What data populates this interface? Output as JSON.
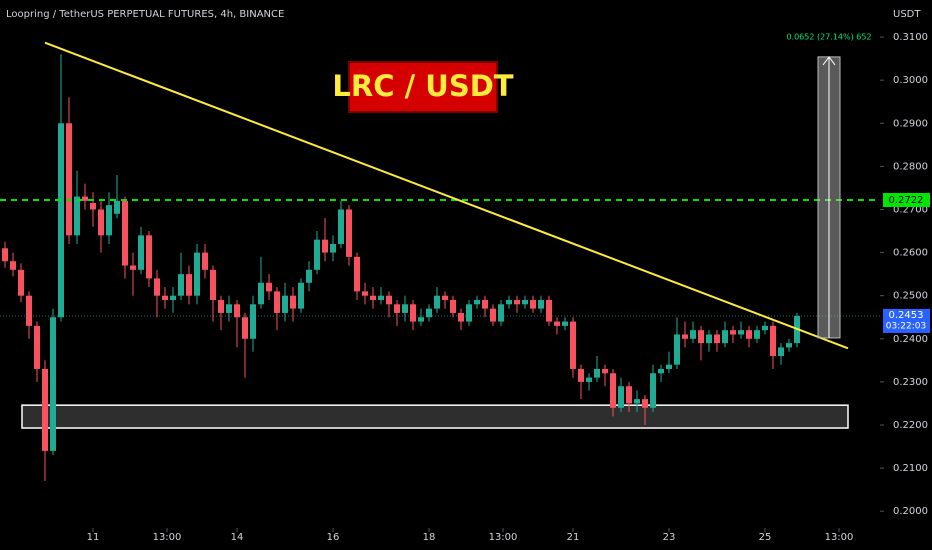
{
  "chart_data": {
    "type": "candlestick",
    "title": "Loopring / TetherUS PERPETUAL FUTURES, 4h, BINANCE",
    "axis_label": "USDT",
    "annotation": "LRC / USDT",
    "up_color": "#22ab94",
    "down_color": "#f7525f",
    "xlim": [
      -22.5,
      417.5
    ],
    "xticks": [
      {
        "value": 24,
        "label": "11"
      },
      {
        "value": 61,
        "label": "13:00"
      },
      {
        "value": 96,
        "label": "14"
      },
      {
        "value": 144,
        "label": "16"
      },
      {
        "value": 192,
        "label": "18"
      },
      {
        "value": 229,
        "label": "13:00"
      },
      {
        "value": 264,
        "label": "21"
      },
      {
        "value": 312,
        "label": "23"
      },
      {
        "value": 360,
        "label": "25"
      },
      {
        "value": 397,
        "label": "13:00"
      }
    ],
    "ylim": [
      0.191,
      0.3186
    ],
    "yticks": [
      {
        "value": 0.2,
        "label": "0.2000"
      },
      {
        "value": 0.21,
        "label": "0.2100"
      },
      {
        "value": 0.22,
        "label": "0.2200"
      },
      {
        "value": 0.23,
        "label": "0.2300"
      },
      {
        "value": 0.24,
        "label": "0.2400"
      },
      {
        "value": 0.25,
        "label": "0.2500"
      },
      {
        "value": 0.26,
        "label": "0.2600"
      },
      {
        "value": 0.27,
        "label": "0.2700"
      },
      {
        "value": 0.28,
        "label": "0.2800"
      },
      {
        "value": 0.29,
        "label": "0.2900"
      },
      {
        "value": 0.3,
        "label": "0.3000"
      },
      {
        "value": 0.31,
        "label": "0.3100"
      }
    ],
    "grid": false,
    "x": [
      -20,
      -16,
      -12,
      -8,
      -4,
      0,
      4,
      8,
      12,
      16,
      20,
      24,
      28,
      32,
      36,
      40,
      44,
      48,
      52,
      56,
      60,
      64,
      68,
      72,
      76,
      80,
      84,
      88,
      92,
      96,
      100,
      104,
      108,
      112,
      116,
      120,
      124,
      128,
      132,
      136,
      140,
      144,
      148,
      152,
      156,
      160,
      164,
      168,
      172,
      176,
      180,
      184,
      188,
      192,
      196,
      200,
      204,
      208,
      212,
      216,
      220,
      224,
      228,
      232,
      236,
      240,
      244,
      248,
      252,
      256,
      260,
      264,
      268,
      272,
      276,
      280,
      284,
      288,
      292,
      296,
      300,
      304,
      308,
      312,
      316,
      320,
      324,
      328,
      332,
      336,
      340,
      344,
      348,
      352,
      356,
      360,
      364,
      368,
      372,
      376
    ],
    "candles": [
      [
        0.261,
        0.2625,
        0.2565,
        0.258
      ],
      [
        0.258,
        0.26,
        0.2545,
        0.256
      ],
      [
        0.256,
        0.2575,
        0.2485,
        0.25
      ],
      [
        0.25,
        0.251,
        0.24,
        0.243
      ],
      [
        0.243,
        0.244,
        0.23,
        0.233
      ],
      [
        0.233,
        0.235,
        0.207,
        0.214
      ],
      [
        0.214,
        0.247,
        0.213,
        0.245
      ],
      [
        0.245,
        0.306,
        0.244,
        0.29
      ],
      [
        0.29,
        0.296,
        0.262,
        0.264
      ],
      [
        0.264,
        0.279,
        0.262,
        0.273
      ],
      [
        0.273,
        0.276,
        0.27,
        0.272
      ],
      [
        0.2715,
        0.274,
        0.266,
        0.27
      ],
      [
        0.27,
        0.272,
        0.26,
        0.264
      ],
      [
        0.264,
        0.274,
        0.262,
        0.271
      ],
      [
        0.269,
        0.278,
        0.268,
        0.272
      ],
      [
        0.272,
        0.273,
        0.254,
        0.257
      ],
      [
        0.257,
        0.26,
        0.25,
        0.256
      ],
      [
        0.256,
        0.266,
        0.255,
        0.264
      ],
      [
        0.264,
        0.265,
        0.252,
        0.254
      ],
      [
        0.254,
        0.256,
        0.245,
        0.25
      ],
      [
        0.25,
        0.252,
        0.247,
        0.249
      ],
      [
        0.249,
        0.252,
        0.246,
        0.25
      ],
      [
        0.25,
        0.26,
        0.249,
        0.255
      ],
      [
        0.255,
        0.257,
        0.248,
        0.25
      ],
      [
        0.25,
        0.262,
        0.248,
        0.26
      ],
      [
        0.26,
        0.262,
        0.254,
        0.256
      ],
      [
        0.256,
        0.257,
        0.244,
        0.249
      ],
      [
        0.249,
        0.25,
        0.242,
        0.246
      ],
      [
        0.246,
        0.25,
        0.244,
        0.248
      ],
      [
        0.248,
        0.249,
        0.238,
        0.245
      ],
      [
        0.245,
        0.246,
        0.231,
        0.24
      ],
      [
        0.24,
        0.25,
        0.237,
        0.248
      ],
      [
        0.248,
        0.259,
        0.247,
        0.253
      ],
      [
        0.253,
        0.255,
        0.249,
        0.251
      ],
      [
        0.251,
        0.252,
        0.242,
        0.246
      ],
      [
        0.246,
        0.253,
        0.244,
        0.25
      ],
      [
        0.25,
        0.252,
        0.244,
        0.247
      ],
      [
        0.247,
        0.254,
        0.246,
        0.253
      ],
      [
        0.253,
        0.258,
        0.251,
        0.256
      ],
      [
        0.256,
        0.265,
        0.255,
        0.263
      ],
      [
        0.263,
        0.268,
        0.258,
        0.26
      ],
      [
        0.26,
        0.264,
        0.258,
        0.262
      ],
      [
        0.262,
        0.272,
        0.261,
        0.27
      ],
      [
        0.27,
        0.271,
        0.257,
        0.259
      ],
      [
        0.259,
        0.26,
        0.249,
        0.251
      ],
      [
        0.251,
        0.253,
        0.248,
        0.25
      ],
      [
        0.25,
        0.252,
        0.247,
        0.249
      ],
      [
        0.249,
        0.252,
        0.248,
        0.25
      ],
      [
        0.25,
        0.251,
        0.245,
        0.248
      ],
      [
        0.248,
        0.249,
        0.243,
        0.246
      ],
      [
        0.246,
        0.25,
        0.244,
        0.248
      ],
      [
        0.248,
        0.249,
        0.242,
        0.244
      ],
      [
        0.244,
        0.247,
        0.243,
        0.245
      ],
      [
        0.245,
        0.248,
        0.244,
        0.247
      ],
      [
        0.247,
        0.252,
        0.246,
        0.25
      ],
      [
        0.25,
        0.251,
        0.247,
        0.249
      ],
      [
        0.249,
        0.25,
        0.245,
        0.246
      ],
      [
        0.246,
        0.247,
        0.242,
        0.244
      ],
      [
        0.244,
        0.249,
        0.243,
        0.248
      ],
      [
        0.248,
        0.25,
        0.247,
        0.249
      ],
      [
        0.249,
        0.25,
        0.245,
        0.247
      ],
      [
        0.247,
        0.248,
        0.243,
        0.244
      ],
      [
        0.244,
        0.249,
        0.243,
        0.248
      ],
      [
        0.248,
        0.25,
        0.247,
        0.249
      ],
      [
        0.249,
        0.25,
        0.246,
        0.248
      ],
      [
        0.248,
        0.25,
        0.247,
        0.249
      ],
      [
        0.249,
        0.25,
        0.246,
        0.247
      ],
      [
        0.247,
        0.25,
        0.246,
        0.249
      ],
      [
        0.249,
        0.25,
        0.243,
        0.244
      ],
      [
        0.244,
        0.245,
        0.241,
        0.243
      ],
      [
        0.243,
        0.245,
        0.242,
        0.244
      ],
      [
        0.244,
        0.245,
        0.231,
        0.233
      ],
      [
        0.233,
        0.234,
        0.226,
        0.23
      ],
      [
        0.23,
        0.232,
        0.228,
        0.231
      ],
      [
        0.231,
        0.236,
        0.23,
        0.233
      ],
      [
        0.233,
        0.234,
        0.229,
        0.232
      ],
      [
        0.232,
        0.233,
        0.222,
        0.224
      ],
      [
        0.224,
        0.231,
        0.223,
        0.229
      ],
      [
        0.229,
        0.23,
        0.223,
        0.225
      ],
      [
        0.225,
        0.228,
        0.223,
        0.226
      ],
      [
        0.226,
        0.227,
        0.22,
        0.224
      ],
      [
        0.224,
        0.234,
        0.223,
        0.232
      ],
      [
        0.232,
        0.234,
        0.23,
        0.233
      ],
      [
        0.233,
        0.237,
        0.232,
        0.234
      ],
      [
        0.234,
        0.245,
        0.233,
        0.241
      ],
      [
        0.241,
        0.244,
        0.238,
        0.24
      ],
      [
        0.24,
        0.244,
        0.239,
        0.242
      ],
      [
        0.242,
        0.243,
        0.235,
        0.239
      ],
      [
        0.239,
        0.242,
        0.237,
        0.241
      ],
      [
        0.241,
        0.242,
        0.237,
        0.239
      ],
      [
        0.239,
        0.244,
        0.238,
        0.242
      ],
      [
        0.242,
        0.243,
        0.239,
        0.241
      ],
      [
        0.241,
        0.244,
        0.24,
        0.242
      ],
      [
        0.242,
        0.243,
        0.238,
        0.24
      ],
      [
        0.24,
        0.243,
        0.239,
        0.242
      ],
      [
        0.242,
        0.244,
        0.241,
        0.243
      ],
      [
        0.243,
        0.244,
        0.233,
        0.236
      ],
      [
        0.236,
        0.239,
        0.234,
        0.238
      ],
      [
        0.238,
        0.24,
        0.237,
        0.239
      ],
      [
        0.239,
        0.246,
        0.238,
        0.2453
      ]
    ],
    "trendline": {
      "x": [
        0,
        401.5
      ],
      "y": [
        0.3087,
        0.2378
      ],
      "color": "#ffeb3b"
    },
    "resistance": {
      "value": 0.2722,
      "label": "0.2722",
      "color": "#00e600"
    },
    "support_zone": {
      "x": [
        -11.5,
        401.5
      ],
      "y": [
        0.2193,
        0.2246
      ]
    },
    "measure": {
      "x": [
        386.5,
        397.5
      ],
      "y": [
        0.2402,
        0.3054
      ],
      "label": "0.0652 (27.14%) 652"
    },
    "last_price": {
      "value": 0.2453,
      "label": "0.2453",
      "countdown": "03:22:03"
    }
  }
}
